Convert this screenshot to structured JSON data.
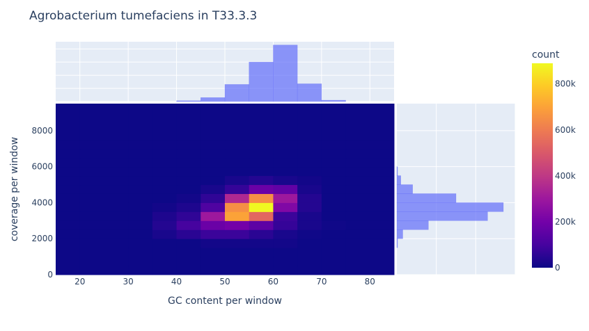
{
  "chart_data": {
    "type": "heatmap",
    "title": "Agrobacterium tumefaciens in T33.3.3",
    "xlabel": "GC content per window",
    "ylabel": "coverage per window",
    "xlim": [
      15,
      85
    ],
    "ylim": [
      0,
      9500
    ],
    "x_ticks": [
      20,
      30,
      40,
      50,
      60,
      70,
      80
    ],
    "y_ticks": [
      0,
      2000,
      4000,
      6000,
      8000
    ],
    "x_bin_edges": [
      15,
      20,
      25,
      30,
      35,
      40,
      45,
      50,
      55,
      60,
      65,
      70,
      75,
      80,
      85
    ],
    "y_bin_edges": [
      0,
      500,
      1000,
      1500,
      2000,
      2500,
      3000,
      3500,
      4000,
      4500,
      5000,
      5500,
      6000,
      6500,
      7000,
      7500,
      8000,
      8500,
      9000,
      9500
    ],
    "z": [
      [
        0,
        0,
        0,
        0,
        0,
        0,
        0,
        0,
        0,
        0,
        0,
        0,
        0,
        0
      ],
      [
        0,
        0,
        0,
        0,
        0,
        0,
        0,
        0,
        0,
        0,
        0,
        0,
        0,
        0
      ],
      [
        0,
        0,
        0,
        0,
        0,
        0,
        0,
        0,
        0,
        0,
        0,
        0,
        0,
        0
      ],
      [
        0,
        0,
        0,
        0,
        0,
        0,
        10000,
        10000,
        10000,
        10000,
        0,
        0,
        0,
        0
      ],
      [
        0,
        0,
        0,
        0,
        20000,
        50000,
        80000,
        80000,
        50000,
        20000,
        5000,
        0,
        0,
        0
      ],
      [
        0,
        0,
        0,
        0,
        40000,
        100000,
        180000,
        200000,
        150000,
        70000,
        20000,
        5000,
        0,
        0
      ],
      [
        0,
        0,
        0,
        0,
        30000,
        60000,
        300000,
        700000,
        540000,
        80000,
        20000,
        0,
        0,
        0
      ],
      [
        0,
        0,
        0,
        0,
        10000,
        30000,
        120000,
        650000,
        890000,
        230000,
        40000,
        0,
        0,
        0
      ],
      [
        0,
        0,
        0,
        0,
        0,
        10000,
        60000,
        350000,
        650000,
        300000,
        40000,
        0,
        0,
        0
      ],
      [
        0,
        0,
        0,
        0,
        0,
        0,
        20000,
        70000,
        180000,
        160000,
        20000,
        0,
        0,
        0
      ],
      [
        0,
        0,
        0,
        0,
        0,
        0,
        0,
        20000,
        40000,
        20000,
        10000,
        0,
        0,
        0
      ],
      [
        0,
        0,
        0,
        0,
        0,
        0,
        0,
        0,
        0,
        0,
        0,
        0,
        0,
        0
      ],
      [
        0,
        0,
        0,
        0,
        0,
        0,
        0,
        0,
        0,
        0,
        0,
        0,
        0,
        0
      ],
      [
        0,
        0,
        0,
        0,
        0,
        0,
        0,
        0,
        0,
        0,
        0,
        0,
        0,
        0
      ],
      [
        0,
        0,
        0,
        0,
        0,
        0,
        0,
        0,
        0,
        0,
        0,
        0,
        0,
        0
      ],
      [
        0,
        0,
        0,
        0,
        0,
        0,
        0,
        0,
        0,
        0,
        0,
        0,
        0,
        0
      ],
      [
        0,
        0,
        0,
        0,
        0,
        0,
        0,
        0,
        0,
        0,
        0,
        0,
        0,
        0
      ],
      [
        0,
        0,
        0,
        0,
        0,
        0,
        0,
        0,
        0,
        0,
        0,
        0,
        0,
        0
      ],
      [
        0,
        0,
        0,
        0,
        0,
        0,
        0,
        0,
        0,
        0,
        0,
        0,
        0,
        0
      ]
    ],
    "colorbar": {
      "title": "count",
      "range": [
        0,
        890000
      ],
      "ticks": [
        0,
        200000,
        400000,
        600000,
        800000
      ],
      "tick_labels": [
        "0",
        "200k",
        "400k",
        "600k",
        "800k"
      ],
      "colorscale": [
        "#0d0887",
        "#46039f",
        "#7201a8",
        "#9c179e",
        "#bd3786",
        "#d8576b",
        "#ed7953",
        "#fb9f3a",
        "#fdca26",
        "#f0f921"
      ]
    },
    "x_marginal_histogram": {
      "bin_edges": [
        15,
        20,
        25,
        30,
        35,
        40,
        45,
        50,
        55,
        60,
        65,
        70,
        75,
        80,
        85
      ],
      "values": [
        0,
        0,
        0,
        0,
        0,
        60,
        300,
        1300,
        3000,
        4300,
        1350,
        100,
        0,
        0
      ]
    },
    "y_marginal_histogram": {
      "bin_edges": [
        0,
        500,
        1000,
        1500,
        2000,
        2500,
        3000,
        3500,
        4000,
        4500,
        5000,
        5500,
        6000,
        6500,
        7000,
        7500,
        8000,
        8500,
        9000,
        9500
      ],
      "values": [
        0,
        0,
        0,
        10,
        150,
        800,
        2300,
        2700,
        1500,
        400,
        100,
        10,
        0,
        0,
        0,
        0,
        0,
        0,
        0
      ]
    },
    "marginal_color": "#636efa",
    "plot_bgcolor": "#e5ecf6",
    "grid": true
  }
}
